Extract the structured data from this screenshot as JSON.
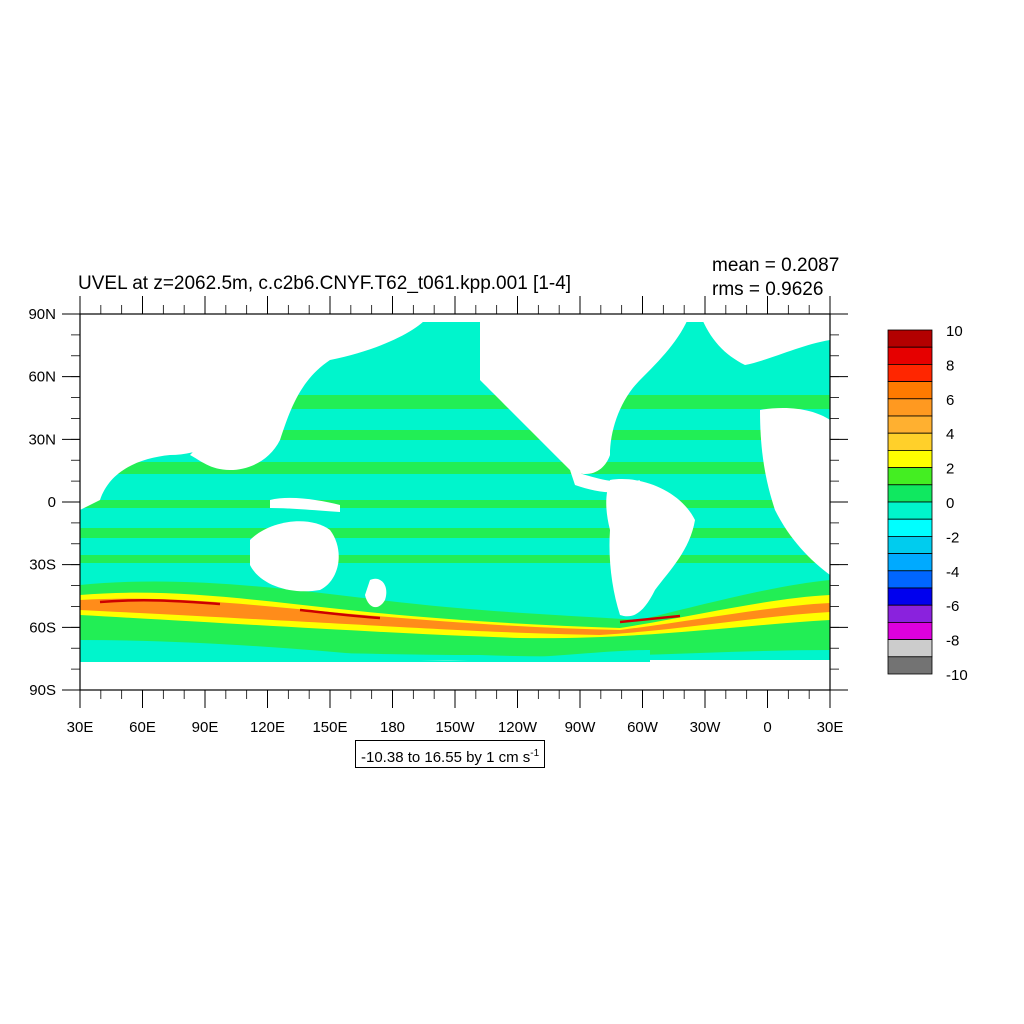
{
  "title": "UVEL at z=2062.5m, c.c2b6.CNYF.T62_t061.kpp.001 [1-4]",
  "stats": {
    "mean": "mean = 0.2087",
    "rms": "rms = 0.9626"
  },
  "range": {
    "text": "-10.38 to 16.55 by 1 cm s",
    "unit_exp": "-1"
  },
  "map": {
    "lat_labels": [
      "90N",
      "60N",
      "30N",
      "0",
      "30S",
      "60S",
      "90S"
    ],
    "lon_labels": [
      "30E",
      "60E",
      "90E",
      "120E",
      "150E",
      "180",
      "150W",
      "120W",
      "90W",
      "60W",
      "30W",
      "0",
      "30E"
    ],
    "colors": {
      "ocean_band_light": "#00ffcc",
      "ocean_band_green": "#22ee55",
      "strong_band_yellow": "#ffff00",
      "strong_band_orange": "#ff8c1a",
      "strong_band_red": "#cc0000",
      "land": "#ffffff"
    }
  },
  "colorbar": {
    "labels": [
      "10",
      "8",
      "6",
      "4",
      "2",
      "0",
      "-2",
      "-4",
      "-6",
      "-8",
      "-10"
    ],
    "colors": [
      "#b30000",
      "#e60000",
      "#ff2600",
      "#ff7a00",
      "#ff9920",
      "#ffb030",
      "#ffd02a",
      "#ffff00",
      "#44ee22",
      "#10e860",
      "#00f5cc",
      "#00ffff",
      "#00ccee",
      "#00aaff",
      "#0066ff",
      "#0000ee",
      "#8a22dd",
      "#dd00dd",
      "#cccccc",
      "#737373"
    ]
  }
}
